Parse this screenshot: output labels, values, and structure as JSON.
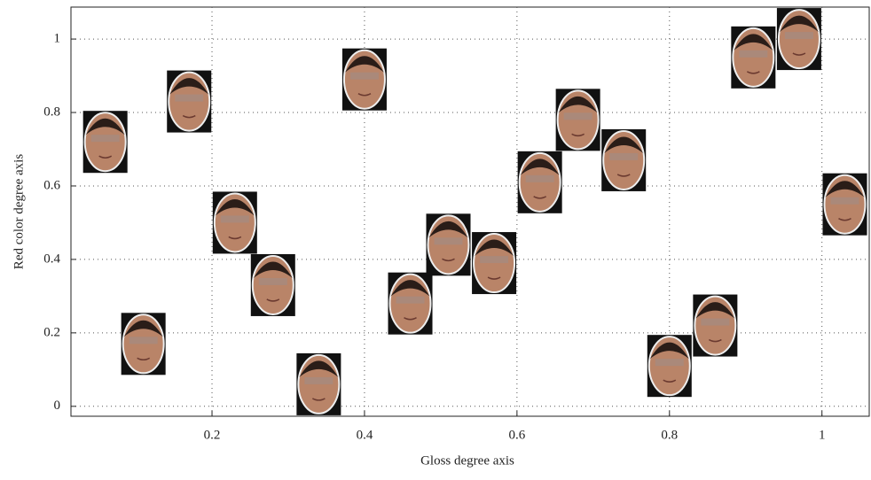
{
  "chart_data": {
    "type": "scatter",
    "x_label": "Gloss degree axis",
    "y_label": "Red color degree axis",
    "x": [
      0.06,
      0.17,
      0.11,
      0.23,
      0.28,
      0.34,
      0.4,
      0.46,
      0.51,
      0.57,
      0.63,
      0.68,
      0.74,
      0.8,
      0.86,
      0.91,
      0.97,
      1.03
    ],
    "values": [
      0.72,
      0.83,
      0.17,
      0.5,
      0.33,
      0.06,
      0.89,
      0.28,
      0.44,
      0.39,
      0.61,
      0.78,
      0.67,
      0.11,
      0.22,
      0.95,
      1.0,
      0.55
    ],
    "color": "#b98468",
    "xlim": [
      0.015,
      1.062
    ],
    "ylim": [
      -0.027,
      1.087
    ],
    "xticks": [
      0.2,
      0.4,
      0.6,
      0.8,
      1
    ],
    "yticks": [
      0,
      0.2,
      0.4,
      0.6,
      0.8,
      1
    ],
    "grid": true
  }
}
